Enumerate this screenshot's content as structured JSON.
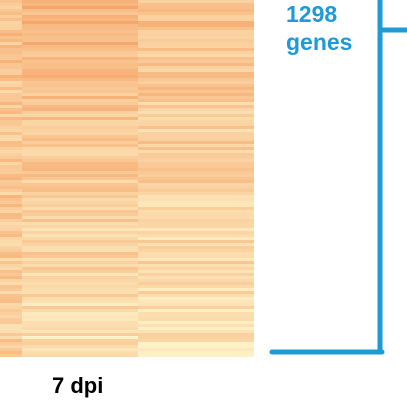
{
  "chart_data": {
    "type": "heatmap",
    "column_label": "7 dpi",
    "annotation_number": "1298",
    "annotation_unit": "genes",
    "columns": 3,
    "color_low": "#fdf3c9",
    "color_high": "#f59a5c",
    "bracket_color": "#1e9ad6"
  }
}
